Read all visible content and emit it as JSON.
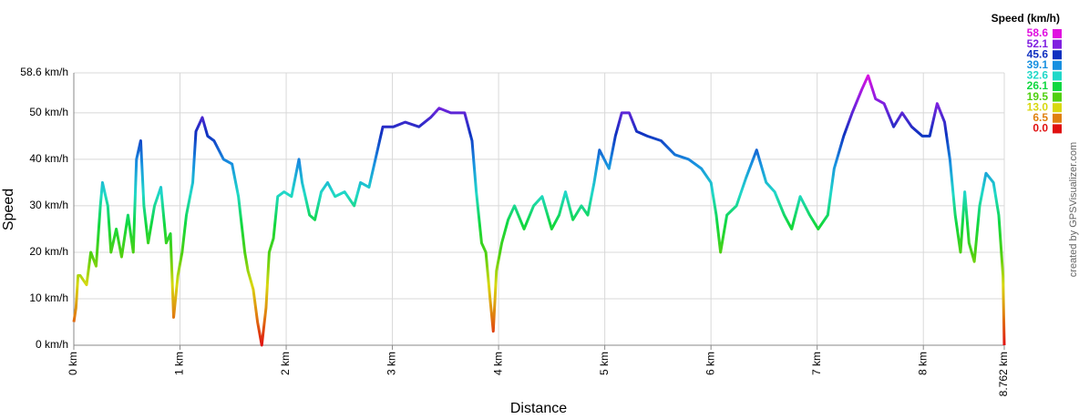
{
  "chart_data": {
    "type": "line",
    "x_label": "Distance",
    "y_label": "Speed",
    "credit": "created by GPSVisualizer.com",
    "legend_title": "Speed (km/h)",
    "color_scale": [
      {
        "value": 58.6,
        "color": "#e010e0"
      },
      {
        "value": 52.1,
        "color": "#8020e0"
      },
      {
        "value": 45.6,
        "color": "#1030c0"
      },
      {
        "value": 39.1,
        "color": "#1890e0"
      },
      {
        "value": 32.6,
        "color": "#20d8c8"
      },
      {
        "value": 26.1,
        "color": "#10d840"
      },
      {
        "value": 19.5,
        "color": "#50d010"
      },
      {
        "value": 13.0,
        "label": "13.0",
        "color": "#d8d810"
      },
      {
        "value": 6.5,
        "color": "#e08010"
      },
      {
        "value": 0.0,
        "label": "0.0",
        "color": "#e01010"
      }
    ],
    "grid": true,
    "xlim": [
      0,
      8.762
    ],
    "ylim": [
      0,
      58.6
    ],
    "xticks": [
      {
        "value": 0,
        "label": "0 km"
      },
      {
        "value": 1,
        "label": "1 km"
      },
      {
        "value": 2,
        "label": "2 km"
      },
      {
        "value": 3,
        "label": "3 km"
      },
      {
        "value": 4,
        "label": "4 km"
      },
      {
        "value": 5,
        "label": "5 km"
      },
      {
        "value": 6,
        "label": "6 km"
      },
      {
        "value": 7,
        "label": "7 km"
      },
      {
        "value": 8,
        "label": "8 km"
      },
      {
        "value": 8.762,
        "label": "8.762 km"
      }
    ],
    "yticks": [
      {
        "value": 0,
        "label": "0 km/h"
      },
      {
        "value": 10,
        "label": "10 km/h"
      },
      {
        "value": 20,
        "label": "20 km/h"
      },
      {
        "value": 30,
        "label": "30 km/h"
      },
      {
        "value": 40,
        "label": "40 km/h"
      },
      {
        "value": 50,
        "label": "50 km/h"
      },
      {
        "value": 58.6,
        "label": "58.6 km/h"
      }
    ],
    "x": [
      0,
      0.02,
      0.04,
      0.06,
      0.12,
      0.16,
      0.21,
      0.25,
      0.27,
      0.32,
      0.35,
      0.4,
      0.45,
      0.51,
      0.56,
      0.59,
      0.63,
      0.66,
      0.7,
      0.76,
      0.82,
      0.87,
      0.91,
      0.94,
      0.98,
      1.02,
      1.06,
      1.12,
      1.15,
      1.21,
      1.26,
      1.32,
      1.41,
      1.49,
      1.55,
      1.61,
      1.64,
      1.69,
      1.73,
      1.77,
      1.81,
      1.84,
      1.88,
      1.92,
      1.98,
      2.05,
      2.12,
      2.15,
      2.22,
      2.27,
      2.33,
      2.39,
      2.46,
      2.55,
      2.64,
      2.7,
      2.78,
      2.84,
      2.91,
      3.01,
      3.12,
      3.25,
      3.36,
      3.44,
      3.55,
      3.68,
      3.75,
      3.79,
      3.84,
      3.88,
      3.92,
      3.95,
      3.98,
      4.03,
      4.09,
      4.15,
      4.24,
      4.33,
      4.41,
      4.5,
      4.57,
      4.63,
      4.7,
      4.78,
      4.84,
      4.9,
      4.95,
      5.04,
      5.1,
      5.16,
      5.23,
      5.3,
      5.4,
      5.53,
      5.66,
      5.79,
      5.91,
      6.0,
      6.05,
      6.09,
      6.15,
      6.24,
      6.33,
      6.43,
      6.52,
      6.6,
      6.69,
      6.76,
      6.84,
      6.93,
      7.01,
      7.1,
      7.16,
      7.25,
      7.33,
      7.42,
      7.48,
      7.55,
      7.63,
      7.72,
      7.8,
      7.89,
      7.99,
      8.06,
      8.13,
      8.2,
      8.25,
      8.3,
      8.35,
      8.39,
      8.43,
      8.48,
      8.53,
      8.59,
      8.66,
      8.71,
      8.75,
      8.762
    ],
    "values": [
      5,
      8,
      15,
      15,
      13,
      20,
      17,
      30,
      35,
      30,
      20,
      25,
      19,
      28,
      20,
      40,
      44,
      30,
      22,
      30,
      34,
      22,
      24,
      6,
      15,
      20,
      28,
      35,
      46,
      49,
      45,
      44,
      40,
      39,
      32,
      20,
      16,
      12,
      5,
      0,
      8,
      20,
      23,
      32,
      33,
      32,
      40,
      35,
      28,
      27,
      33,
      35,
      32,
      33,
      30,
      35,
      34,
      40,
      47,
      47,
      48,
      47,
      49,
      51,
      50,
      50,
      44,
      33,
      22,
      20,
      10,
      3,
      16,
      22,
      27,
      30,
      25,
      30,
      32,
      25,
      28,
      33,
      27,
      30,
      28,
      35,
      42,
      38,
      45,
      50,
      50,
      46,
      45,
      44,
      41,
      40,
      38,
      35,
      28,
      20,
      28,
      30,
      36,
      42,
      35,
      33,
      28,
      25,
      32,
      28,
      25,
      28,
      38,
      45,
      50,
      55,
      58,
      53,
      52,
      47,
      50,
      47,
      45,
      45,
      52,
      48,
      40,
      28,
      20,
      33,
      22,
      18,
      30,
      37,
      35,
      28,
      15,
      0
    ]
  }
}
